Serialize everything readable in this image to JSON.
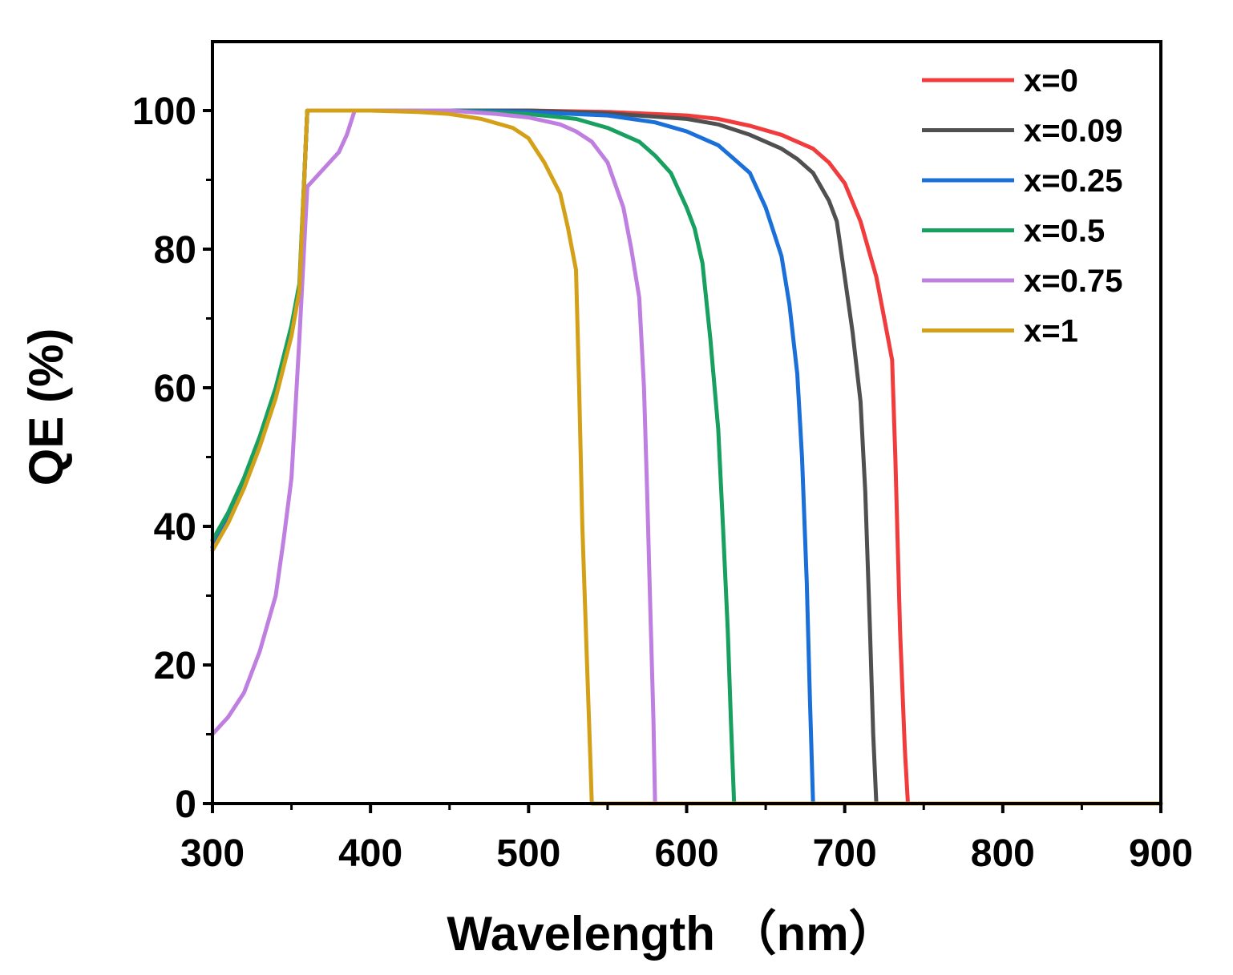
{
  "chart_data": {
    "type": "line",
    "title": "",
    "xlabel": "Wavelength （nm）",
    "ylabel": "QE (%)",
    "xlim": [
      300,
      900
    ],
    "ylim": [
      0,
      110
    ],
    "xticks": [
      300,
      400,
      500,
      600,
      700,
      800,
      900
    ],
    "xtick_labels": [
      "300",
      "400",
      "500",
      "600",
      "700",
      "800",
      "900"
    ],
    "yticks": [
      0,
      20,
      40,
      60,
      80,
      100
    ],
    "ytick_labels": [
      "0",
      "20",
      "40",
      "60",
      "80",
      "100"
    ],
    "grid": false,
    "legend_position": "top-right",
    "series": [
      {
        "name": "x=0",
        "color": "#f03c3c",
        "points": [
          [
            300,
            37
          ],
          [
            310,
            41
          ],
          [
            320,
            46
          ],
          [
            330,
            52
          ],
          [
            340,
            59
          ],
          [
            350,
            68
          ],
          [
            355,
            74
          ],
          [
            360,
            100
          ],
          [
            380,
            100
          ],
          [
            400,
            100
          ],
          [
            450,
            100
          ],
          [
            500,
            100
          ],
          [
            550,
            99.8
          ],
          [
            600,
            99.3
          ],
          [
            620,
            98.8
          ],
          [
            640,
            97.8
          ],
          [
            660,
            96.5
          ],
          [
            680,
            94.5
          ],
          [
            690,
            92.5
          ],
          [
            700,
            89.5
          ],
          [
            710,
            84
          ],
          [
            720,
            76
          ],
          [
            725,
            70
          ],
          [
            730,
            64
          ],
          [
            732,
            50
          ],
          [
            735,
            25
          ],
          [
            738,
            8
          ],
          [
            740,
            0
          ],
          [
            900,
            0
          ]
        ]
      },
      {
        "name": "x=0.09",
        "color": "#505050",
        "points": [
          [
            300,
            37
          ],
          [
            310,
            41
          ],
          [
            320,
            46
          ],
          [
            330,
            52
          ],
          [
            340,
            59
          ],
          [
            350,
            68
          ],
          [
            355,
            74
          ],
          [
            360,
            100
          ],
          [
            400,
            100
          ],
          [
            450,
            100
          ],
          [
            500,
            100
          ],
          [
            550,
            99.6
          ],
          [
            600,
            98.8
          ],
          [
            620,
            98
          ],
          [
            640,
            96.5
          ],
          [
            660,
            94.5
          ],
          [
            670,
            93
          ],
          [
            680,
            91
          ],
          [
            690,
            87
          ],
          [
            695,
            84
          ],
          [
            700,
            76
          ],
          [
            705,
            68
          ],
          [
            710,
            58
          ],
          [
            713,
            45
          ],
          [
            716,
            25
          ],
          [
            718,
            10
          ],
          [
            720,
            0
          ],
          [
            900,
            0
          ]
        ]
      },
      {
        "name": "x=0.25",
        "color": "#1a6fd8",
        "points": [
          [
            300,
            37
          ],
          [
            310,
            41
          ],
          [
            320,
            46
          ],
          [
            330,
            52
          ],
          [
            340,
            59
          ],
          [
            350,
            68
          ],
          [
            355,
            74
          ],
          [
            360,
            100
          ],
          [
            400,
            100
          ],
          [
            450,
            100
          ],
          [
            500,
            99.8
          ],
          [
            550,
            99.3
          ],
          [
            580,
            98.3
          ],
          [
            600,
            97
          ],
          [
            620,
            95
          ],
          [
            630,
            93
          ],
          [
            640,
            91
          ],
          [
            650,
            86
          ],
          [
            660,
            79
          ],
          [
            665,
            72
          ],
          [
            670,
            62
          ],
          [
            673,
            50
          ],
          [
            676,
            32
          ],
          [
            678,
            15
          ],
          [
            680,
            0
          ],
          [
            900,
            0
          ]
        ]
      },
      {
        "name": "x=0.5",
        "color": "#18a060",
        "points": [
          [
            300,
            38
          ],
          [
            310,
            42
          ],
          [
            320,
            47
          ],
          [
            330,
            53
          ],
          [
            340,
            60
          ],
          [
            350,
            69
          ],
          [
            355,
            75
          ],
          [
            360,
            100
          ],
          [
            400,
            100
          ],
          [
            450,
            100
          ],
          [
            500,
            99.5
          ],
          [
            530,
            98.8
          ],
          [
            550,
            97.5
          ],
          [
            570,
            95.5
          ],
          [
            580,
            93.5
          ],
          [
            590,
            91
          ],
          [
            600,
            86
          ],
          [
            605,
            83
          ],
          [
            610,
            78
          ],
          [
            615,
            67
          ],
          [
            620,
            54
          ],
          [
            623,
            40
          ],
          [
            626,
            25
          ],
          [
            628,
            12
          ],
          [
            630,
            0
          ],
          [
            900,
            0
          ]
        ]
      },
      {
        "name": "x=0.75",
        "color": "#bf7fe0",
        "points": [
          [
            300,
            10
          ],
          [
            310,
            12.5
          ],
          [
            320,
            16
          ],
          [
            330,
            22
          ],
          [
            340,
            30
          ],
          [
            345,
            38
          ],
          [
            350,
            47
          ],
          [
            355,
            67
          ],
          [
            360,
            89
          ],
          [
            370,
            91.5
          ],
          [
            380,
            94
          ],
          [
            385,
            96.5
          ],
          [
            390,
            100
          ],
          [
            450,
            100
          ],
          [
            480,
            99.5
          ],
          [
            500,
            99
          ],
          [
            520,
            98
          ],
          [
            530,
            97
          ],
          [
            540,
            95.5
          ],
          [
            550,
            92.5
          ],
          [
            560,
            86
          ],
          [
            565,
            80
          ],
          [
            570,
            73
          ],
          [
            573,
            60
          ],
          [
            575,
            45
          ],
          [
            577,
            28
          ],
          [
            579,
            12
          ],
          [
            580,
            0
          ],
          [
            900,
            0
          ]
        ]
      },
      {
        "name": "x=1",
        "color": "#d4a017",
        "points": [
          [
            300,
            36.5
          ],
          [
            310,
            40.5
          ],
          [
            320,
            45.5
          ],
          [
            330,
            51.5
          ],
          [
            340,
            58.5
          ],
          [
            350,
            67.5
          ],
          [
            355,
            74
          ],
          [
            360,
            100
          ],
          [
            400,
            100
          ],
          [
            430,
            99.8
          ],
          [
            450,
            99.5
          ],
          [
            470,
            98.8
          ],
          [
            490,
            97.5
          ],
          [
            500,
            96
          ],
          [
            510,
            92.5
          ],
          [
            520,
            88
          ],
          [
            525,
            83
          ],
          [
            530,
            77
          ],
          [
            532,
            60
          ],
          [
            534,
            40
          ],
          [
            537,
            20
          ],
          [
            539,
            7
          ],
          [
            540,
            0
          ],
          [
            900,
            0
          ]
        ]
      }
    ]
  }
}
